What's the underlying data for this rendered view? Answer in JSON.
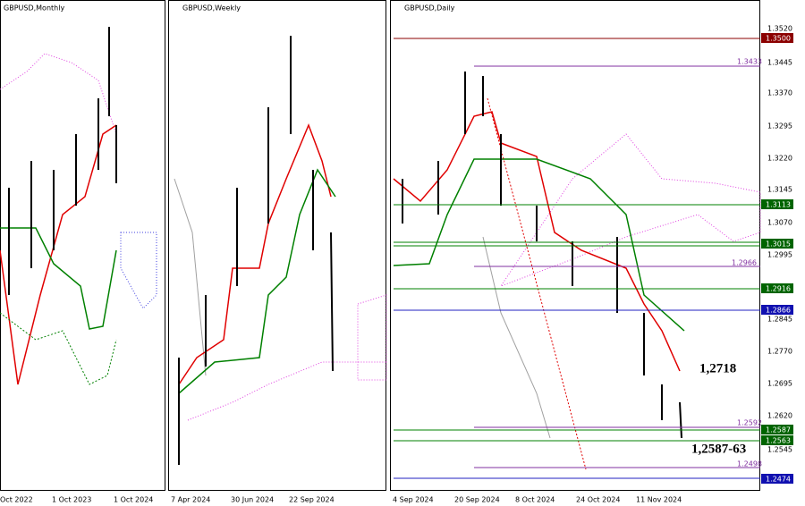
{
  "panels": [
    {
      "title": "GBPUSD,Monthly",
      "x_labels": [
        "Oct 2022",
        "1 Oct 2023",
        "1 Oct 2024"
      ]
    },
    {
      "title": "GBPUSD,Weekly",
      "x_labels": [
        "7 Apr 2024",
        "30 Jun 2024",
        "22 Sep 2024"
      ]
    },
    {
      "title": "GBPUSD,Daily",
      "x_labels": [
        "4 Sep 2024",
        "20 Sep 2024",
        "8 Oct 2024",
        "24 Oct 2024",
        "11 Nov 2024"
      ]
    }
  ],
  "price_axis": [
    "1.3520",
    "1.3445",
    "1.3370",
    "1.3295",
    "1.3220",
    "1.3145",
    "1.3070",
    "1.2995",
    "1.2845",
    "1.2770",
    "1.2695",
    "1.2620",
    "1.2545"
  ],
  "levels": [
    "1.3500",
    "1.3433",
    "1.3113",
    "1.3015",
    "1.2966",
    "1.2916",
    "1.2866",
    "1.2592",
    "1.2587",
    "1.2563",
    "1.2498",
    "1.2474"
  ],
  "annotations": [
    "1,2718",
    "1,2587-63"
  ]
}
